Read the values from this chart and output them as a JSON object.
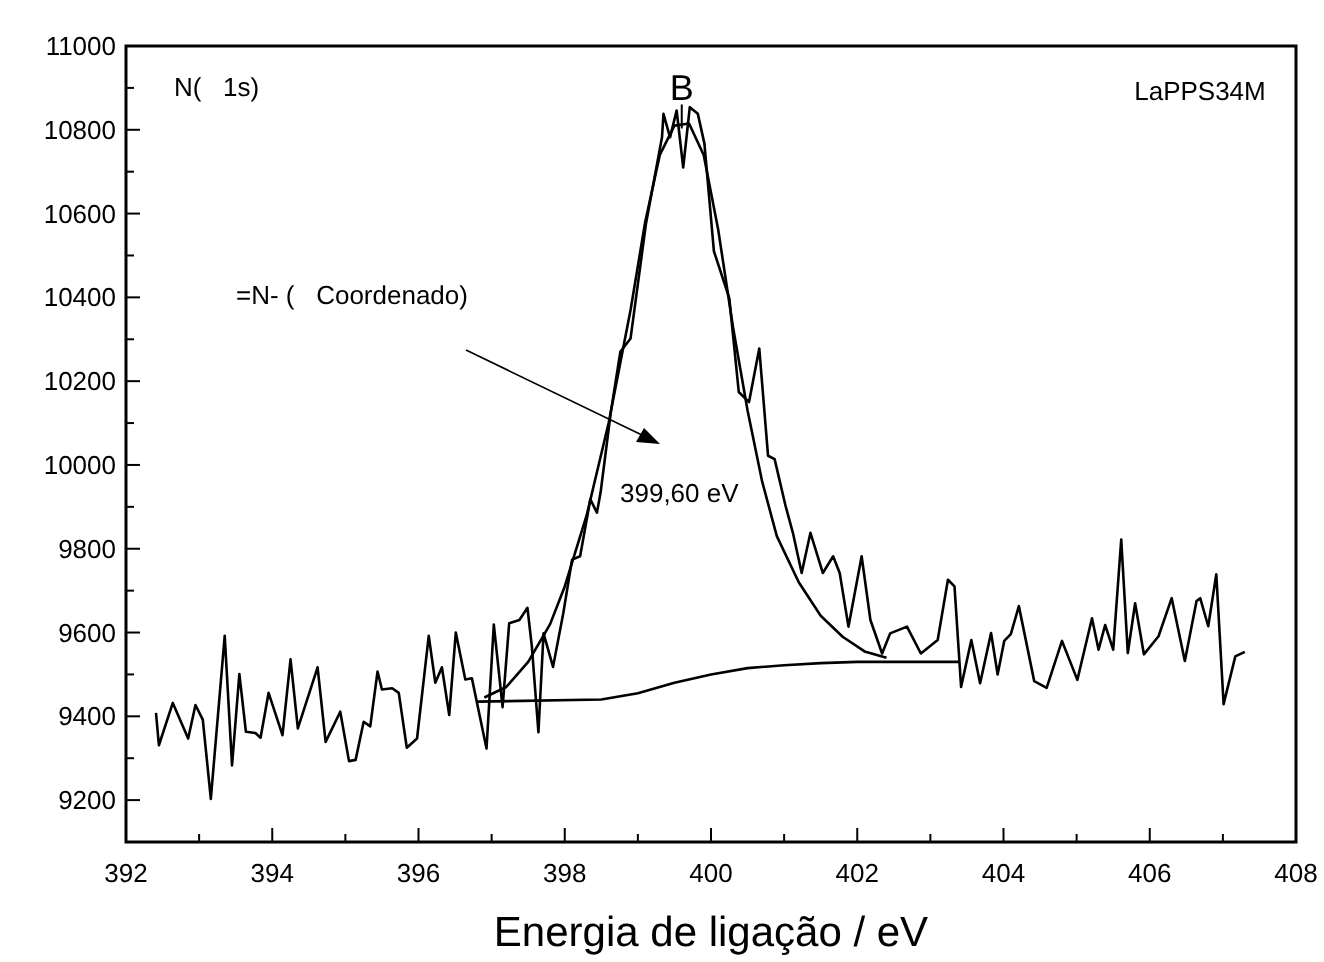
{
  "chart_data": {
    "type": "line",
    "xlabel": "Energia de ligação / eV",
    "xlim": [
      392,
      408
    ],
    "ylim": [
      9100,
      11000
    ],
    "xticks": [
      392,
      {
        "value": 393,
        "label": null
      },
      394,
      {
        "value": 395,
        "label": null
      },
      396,
      {
        "value": 397,
        "label": null
      },
      398,
      {
        "value": 399,
        "label": null
      },
      400,
      {
        "value": 401,
        "label": null
      },
      402,
      {
        "value": 403,
        "label": null
      },
      404,
      {
        "value": 405,
        "label": null
      },
      406,
      {
        "value": 407,
        "label": null
      },
      408
    ],
    "yticks": [
      {
        "value": 9100,
        "label": null
      },
      9200,
      {
        "value": 9300,
        "label": null
      },
      9400,
      {
        "value": 9500,
        "label": null
      },
      9600,
      {
        "value": 9700,
        "label": null
      },
      9800,
      {
        "value": 9900,
        "label": null
      },
      10000,
      {
        "value": 10100,
        "label": null
      },
      10200,
      {
        "value": 10300,
        "label": null
      },
      10400,
      {
        "value": 10500,
        "label": null
      },
      10600,
      {
        "value": 10700,
        "label": null
      },
      10800,
      {
        "value": 10900,
        "label": null
      },
      11000
    ],
    "grid": false,
    "marker": "none",
    "line_style": "solid",
    "series": [
      {
        "color": "#000000",
        "x": [
          392.41,
          392.45,
          392.64,
          392.85,
          392.95,
          393.05,
          393.16,
          393.35,
          393.45,
          393.55,
          393.64,
          393.77,
          393.84,
          393.95,
          394.14,
          394.25,
          394.35,
          394.62,
          394.73,
          394.93,
          395.05,
          395.14,
          395.25,
          395.34,
          395.44,
          395.5,
          395.64,
          395.73,
          395.84,
          395.98,
          396.14,
          396.23,
          396.32,
          396.42,
          396.51,
          396.64,
          396.73,
          396.93,
          397.03,
          397.15,
          397.24,
          397.38,
          397.49,
          397.55,
          397.64,
          397.71,
          397.84,
          397.98,
          398.1,
          398.21,
          398.35,
          398.44,
          398.49,
          398.63,
          398.76,
          398.9,
          399.11,
          399.33,
          399.35,
          399.44,
          399.53,
          399.62,
          399.71,
          399.82,
          399.91,
          400.04,
          400.25,
          400.38,
          400.52,
          400.66,
          400.78,
          400.87,
          401.02,
          401.12,
          401.24,
          401.36,
          401.53,
          401.67,
          401.76,
          401.88,
          402.06,
          402.18,
          402.34,
          402.45,
          402.68,
          402.87,
          403.1,
          403.24,
          403.33,
          403.42,
          403.56,
          403.68,
          403.83,
          403.92,
          404.01,
          404.1,
          404.21,
          404.42,
          404.59,
          404.8,
          405.01,
          405.21,
          405.3,
          405.39,
          405.5,
          405.61,
          405.7,
          405.8,
          405.92,
          406.12,
          406.3,
          406.48,
          406.64,
          406.69,
          406.8,
          406.91,
          407.01,
          407.17,
          407.3
        ],
        "values": [
          9408,
          9331,
          9432,
          9347,
          9427,
          9392,
          9203,
          9592,
          9283,
          9501,
          9363,
          9360,
          9349,
          9456,
          9355,
          9536,
          9371,
          9517,
          9339,
          9411,
          9293,
          9296,
          9387,
          9376,
          9507,
          9464,
          9467,
          9456,
          9325,
          9347,
          9592,
          9480,
          9517,
          9403,
          9600,
          9488,
          9491,
          9323,
          9619,
          9422,
          9622,
          9630,
          9659,
          9567,
          9362,
          9598,
          9518,
          9646,
          9774,
          9782,
          9918,
          9886,
          9934,
          10126,
          10270,
          10302,
          10575,
          10782,
          10838,
          10782,
          10846,
          10710,
          10854,
          10838,
          10767,
          10510,
          10398,
          10174,
          10150,
          10278,
          10022,
          10014,
          9902,
          9838,
          9742,
          9838,
          9742,
          9782,
          9742,
          9614,
          9782,
          9630,
          9550,
          9598,
          9614,
          9550,
          9582,
          9726,
          9710,
          9470,
          9582,
          9479,
          9599,
          9500,
          9580,
          9596,
          9663,
          9484,
          9468,
          9580,
          9487,
          9634,
          9559,
          9618,
          9559,
          9822,
          9551,
          9670,
          9548,
          9591,
          9682,
          9532,
          9675,
          9682,
          9615,
          9739,
          9429,
          9543,
          9554
        ]
      },
      {
        "color": "#000000",
        "x": [
          396.9,
          397.2,
          397.5,
          397.8,
          398.0,
          398.3,
          398.6,
          398.9,
          399.1,
          399.3,
          399.5,
          399.7,
          399.9,
          400.1,
          400.3,
          400.5,
          400.7,
          400.9,
          401.2,
          401.5,
          401.8,
          402.1,
          402.4
        ],
        "values": [
          9445,
          9470,
          9530,
          9620,
          9710,
          9880,
          10100,
          10370,
          10580,
          10740,
          10810,
          10815,
          10740,
          10560,
          10330,
          10130,
          9960,
          9830,
          9720,
          9640,
          9590,
          9555,
          9540
        ]
      },
      {
        "color": "#000000",
        "x": [
          396.8,
          398.5,
          399.0,
          399.5,
          400.0,
          400.5,
          401.0,
          401.5,
          402.0,
          403.4
        ],
        "values": [
          9435,
          9440,
          9455,
          9480,
          9500,
          9515,
          9522,
          9527,
          9530,
          9530
        ]
      }
    ],
    "annotations": [
      "N(   1s)",
      "LaPPS34M",
      "=N- (   Coordenado)",
      {
        "text": "B",
        "x": 399.6,
        "y": 10870
      },
      "399,60 eV"
    ]
  }
}
